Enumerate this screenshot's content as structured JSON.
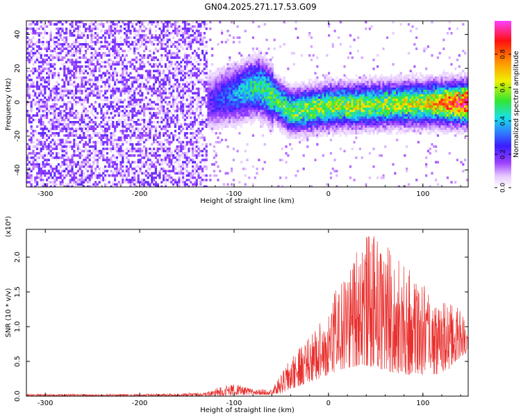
{
  "page": {
    "title": "GN04.2025.271.17.53.G09"
  },
  "colors": {
    "snr_line": "#e8312f",
    "colormap": [
      "#ffffff",
      "#e6c8ff",
      "#8f3bff",
      "#3b1cff",
      "#2f7dff",
      "#19e0e8",
      "#32e632",
      "#f0f000",
      "#ff8c00",
      "#ff1010",
      "#ff40ff"
    ]
  },
  "chart_data": [
    {
      "id": "spectrogram",
      "type": "heatmap",
      "xlabel": "Height of straight line (km)",
      "ylabel": "Frequency (Hz)",
      "xlim": [
        -320,
        148
      ],
      "ylim": [
        -50,
        48
      ],
      "xticks": [
        -300,
        -200,
        -100,
        0,
        100
      ],
      "yticks": [
        -40,
        -20,
        0,
        20,
        40
      ],
      "colorbar": {
        "label": "Normalized spectral amplitude",
        "range": [
          0,
          1
        ],
        "ticks": [
          0.0,
          0.2,
          0.4,
          0.6,
          0.8
        ]
      },
      "description_points": [
        {
          "x": -320,
          "f": 0,
          "amp": 0.1
        },
        {
          "x": -130,
          "f": 0,
          "amp": 0.2
        },
        {
          "x": -75,
          "f": 10,
          "amp": 0.5
        },
        {
          "x": -40,
          "f": -5,
          "amp": 0.55
        },
        {
          "x": 0,
          "f": -2,
          "amp": 0.6
        },
        {
          "x": 50,
          "f": -1,
          "amp": 0.6
        },
        {
          "x": 100,
          "f": 0,
          "amp": 0.65
        },
        {
          "x": 148,
          "f": 0,
          "amp": 0.95
        }
      ]
    },
    {
      "id": "snr",
      "type": "line",
      "xlabel": "Height of straight line (km)",
      "ylabel": "SNR (10 * v/v)",
      "yexponent": "(x10⁴)",
      "xlim": [
        -320,
        148
      ],
      "ylim": [
        0,
        2.4
      ],
      "xticks": [
        -300,
        -200,
        -100,
        0,
        100
      ],
      "yticks": [
        0.0,
        0.5,
        1.0,
        1.5,
        2.0
      ],
      "series": [
        {
          "envelope": [
            {
              "x": -320,
              "low": 0.0,
              "high": 0.03
            },
            {
              "x": -200,
              "low": 0.0,
              "high": 0.03
            },
            {
              "x": -130,
              "low": 0.0,
              "high": 0.05
            },
            {
              "x": -115,
              "low": 0.0,
              "high": 0.14
            },
            {
              "x": -100,
              "low": 0.01,
              "high": 0.18
            },
            {
              "x": -80,
              "low": 0.02,
              "high": 0.1
            },
            {
              "x": -60,
              "low": 0.02,
              "high": 0.1
            },
            {
              "x": -50,
              "low": 0.04,
              "high": 0.32
            },
            {
              "x": -40,
              "low": 0.1,
              "high": 0.55
            },
            {
              "x": -30,
              "low": 0.15,
              "high": 0.7
            },
            {
              "x": -20,
              "low": 0.2,
              "high": 0.9
            },
            {
              "x": -10,
              "low": 0.25,
              "high": 1.05
            },
            {
              "x": 0,
              "low": 0.3,
              "high": 1.3
            },
            {
              "x": 10,
              "low": 0.35,
              "high": 1.6
            },
            {
              "x": 20,
              "low": 0.4,
              "high": 1.8
            },
            {
              "x": 35,
              "low": 0.45,
              "high": 2.35
            },
            {
              "x": 50,
              "low": 0.4,
              "high": 2.3
            },
            {
              "x": 65,
              "low": 0.35,
              "high": 2.15
            },
            {
              "x": 80,
              "low": 0.3,
              "high": 1.9
            },
            {
              "x": 95,
              "low": 0.3,
              "high": 1.7
            },
            {
              "x": 110,
              "low": 0.3,
              "high": 1.5
            },
            {
              "x": 125,
              "low": 0.35,
              "high": 1.35
            },
            {
              "x": 135,
              "low": 0.5,
              "high": 1.3
            },
            {
              "x": 148,
              "low": 0.65,
              "high": 1.15
            }
          ]
        }
      ]
    }
  ]
}
